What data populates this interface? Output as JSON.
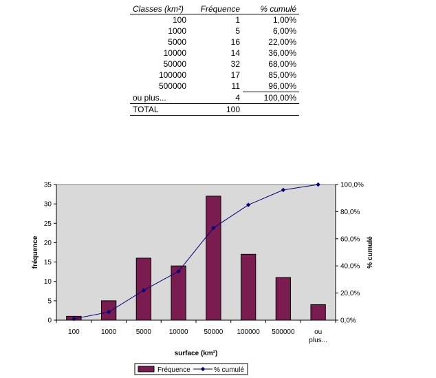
{
  "table": {
    "headers": [
      "Classes (km²)",
      "Fréquence",
      "% cumulé"
    ],
    "rows": [
      [
        "100",
        "1",
        "1,00%"
      ],
      [
        "1000",
        "5",
        "6,00%"
      ],
      [
        "5000",
        "16",
        "22,00%"
      ],
      [
        "10000",
        "14",
        "36,00%"
      ],
      [
        "50000",
        "32",
        "68,00%"
      ],
      [
        "100000",
        "17",
        "85,00%"
      ],
      [
        "500000",
        "11",
        "96,00%"
      ],
      [
        "ou plus...",
        "4",
        "100,00%"
      ]
    ],
    "total": [
      "TOTAL",
      "100"
    ]
  },
  "chart_data": {
    "type": "bar",
    "categories": [
      "100",
      "1000",
      "5000",
      "10000",
      "50000",
      "100000",
      "500000",
      "ou plus..."
    ],
    "series": [
      {
        "name": "Fréquence",
        "type": "bar",
        "values": [
          1,
          5,
          16,
          14,
          32,
          17,
          11,
          4
        ],
        "axis": "left",
        "color": "#7b1c50"
      },
      {
        "name": "% cumulé",
        "type": "line",
        "values": [
          1,
          6,
          22,
          36,
          68,
          85,
          96,
          100
        ],
        "axis": "right",
        "color": "#000080"
      }
    ],
    "xlabel": "surface (km²)",
    "ylabel": "fréquence",
    "y2label": "% cumulé",
    "ylim": [
      0,
      35
    ],
    "y2lim": [
      0,
      100
    ],
    "yticks": [
      "0",
      "5",
      "10",
      "15",
      "20",
      "25",
      "30",
      "35"
    ],
    "y2ticks": [
      "0,0%",
      "20,0%",
      "40,0%",
      "60,0%",
      "80,0%",
      "100,0%"
    ],
    "plot_background": "#d9d9d9",
    "grid": false,
    "legend": {
      "position": "bottom",
      "entries": [
        "Fréquence",
        "% cumulé"
      ]
    }
  }
}
